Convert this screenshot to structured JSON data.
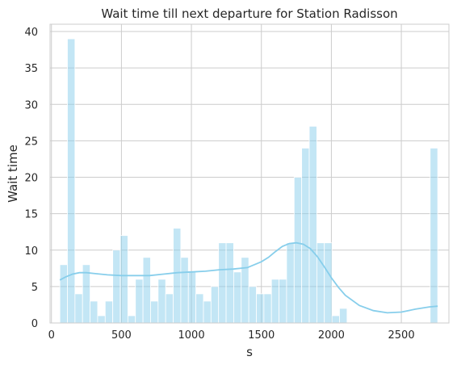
{
  "chart_data": {
    "type": "bar",
    "subtype": "histogram",
    "title": "Wait time till next departure for Station Radisson",
    "xlabel": "s",
    "ylabel": "Wait time",
    "xlim": [
      -10,
      2840
    ],
    "ylim": [
      0,
      41
    ],
    "xticks": [
      0,
      500,
      1000,
      1500,
      2000,
      2500
    ],
    "yticks": [
      0,
      5,
      10,
      15,
      20,
      25,
      30,
      35,
      40
    ],
    "grid": true,
    "bar_color": "#87CEEB",
    "kde_color": "#87CEEB",
    "bins": {
      "start": 60,
      "width": 54,
      "counts": [
        8,
        39,
        4,
        8,
        3,
        1,
        3,
        10,
        12,
        1,
        6,
        9,
        3,
        6,
        4,
        13,
        9,
        7,
        4,
        3,
        5,
        11,
        11,
        7,
        9,
        5,
        4,
        4,
        6,
        6,
        11,
        20,
        24,
        27,
        11,
        11,
        1,
        2,
        0,
        0,
        0,
        0,
        0,
        0,
        0,
        0,
        0,
        0,
        0,
        24
      ]
    },
    "kde": {
      "x": [
        60,
        100,
        150,
        200,
        250,
        300,
        350,
        400,
        500,
        600,
        700,
        800,
        900,
        1000,
        1100,
        1200,
        1300,
        1400,
        1500,
        1550,
        1600,
        1650,
        1700,
        1750,
        1800,
        1850,
        1900,
        1950,
        2000,
        2050,
        2100,
        2200,
        2300,
        2400,
        2500,
        2600,
        2700,
        2760
      ],
      "y": [
        5.9,
        6.3,
        6.7,
        6.9,
        6.9,
        6.8,
        6.7,
        6.6,
        6.5,
        6.5,
        6.5,
        6.7,
        6.9,
        7.0,
        7.1,
        7.3,
        7.4,
        7.6,
        8.4,
        9.0,
        9.8,
        10.5,
        10.9,
        11.0,
        10.8,
        10.2,
        9.1,
        7.7,
        6.2,
        4.9,
        3.8,
        2.4,
        1.7,
        1.4,
        1.5,
        1.9,
        2.2,
        2.3
      ]
    }
  }
}
